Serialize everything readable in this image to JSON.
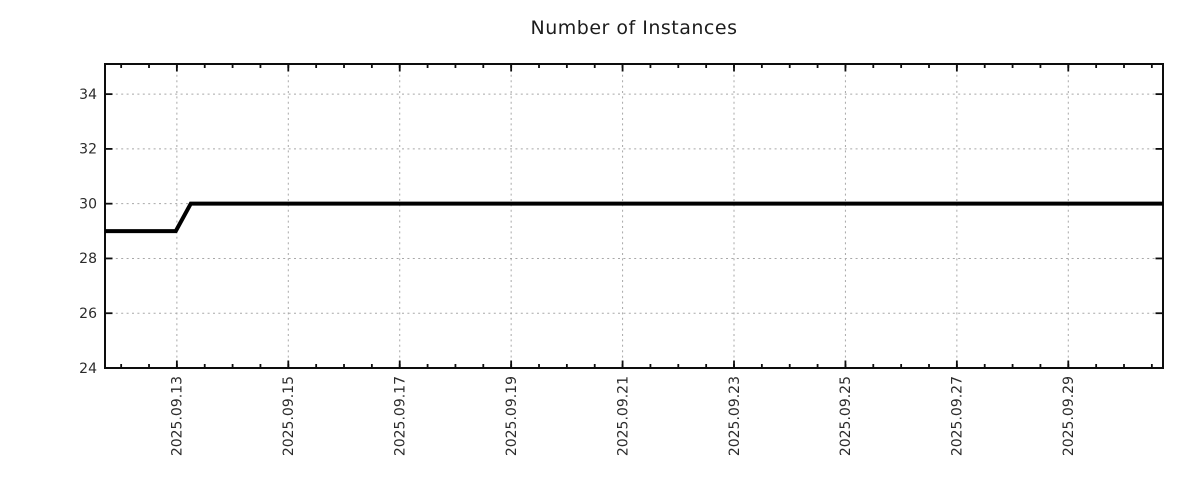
{
  "chart_data": {
    "type": "line",
    "title": "Number of Instances",
    "xlabel": "",
    "ylabel": "",
    "x_unit": "date, September 2025 (day of month)",
    "xlim": [
      11.71,
      30.7
    ],
    "ylim": [
      24,
      35.1
    ],
    "x_major_ticks": [
      13,
      15,
      17,
      19,
      21,
      23,
      25,
      27,
      29
    ],
    "x_tick_labels": [
      "2025.09.13",
      "2025.09.15",
      "2025.09.17",
      "2025.09.19",
      "2025.09.21",
      "2025.09.23",
      "2025.09.25",
      "2025.09.27",
      "2025.09.29"
    ],
    "x_minor_tick_step": 0.5,
    "y_ticks": [
      24,
      26,
      28,
      30,
      32,
      34
    ],
    "y_tick_labels": [
      "24",
      "26",
      "28",
      "30",
      "32",
      "34"
    ],
    "grid": true,
    "legend": "none",
    "series": [
      {
        "name": "instances",
        "color": "#000000",
        "line_width": 4,
        "points_x": [
          11.71,
          12.98,
          13.25,
          30.7
        ],
        "points_y": [
          29,
          29,
          30,
          30
        ],
        "description": "Flat at 29 instances until 2025.09.13, steps up to 30, then flat at 30 through the end of the range"
      }
    ],
    "colors": {
      "line": "#000000",
      "grid": "#a8a8a8",
      "border": "#0d0d0d",
      "tick": "#0d0d0d",
      "text": "#2b2b2b",
      "background": "#ffffff"
    }
  }
}
